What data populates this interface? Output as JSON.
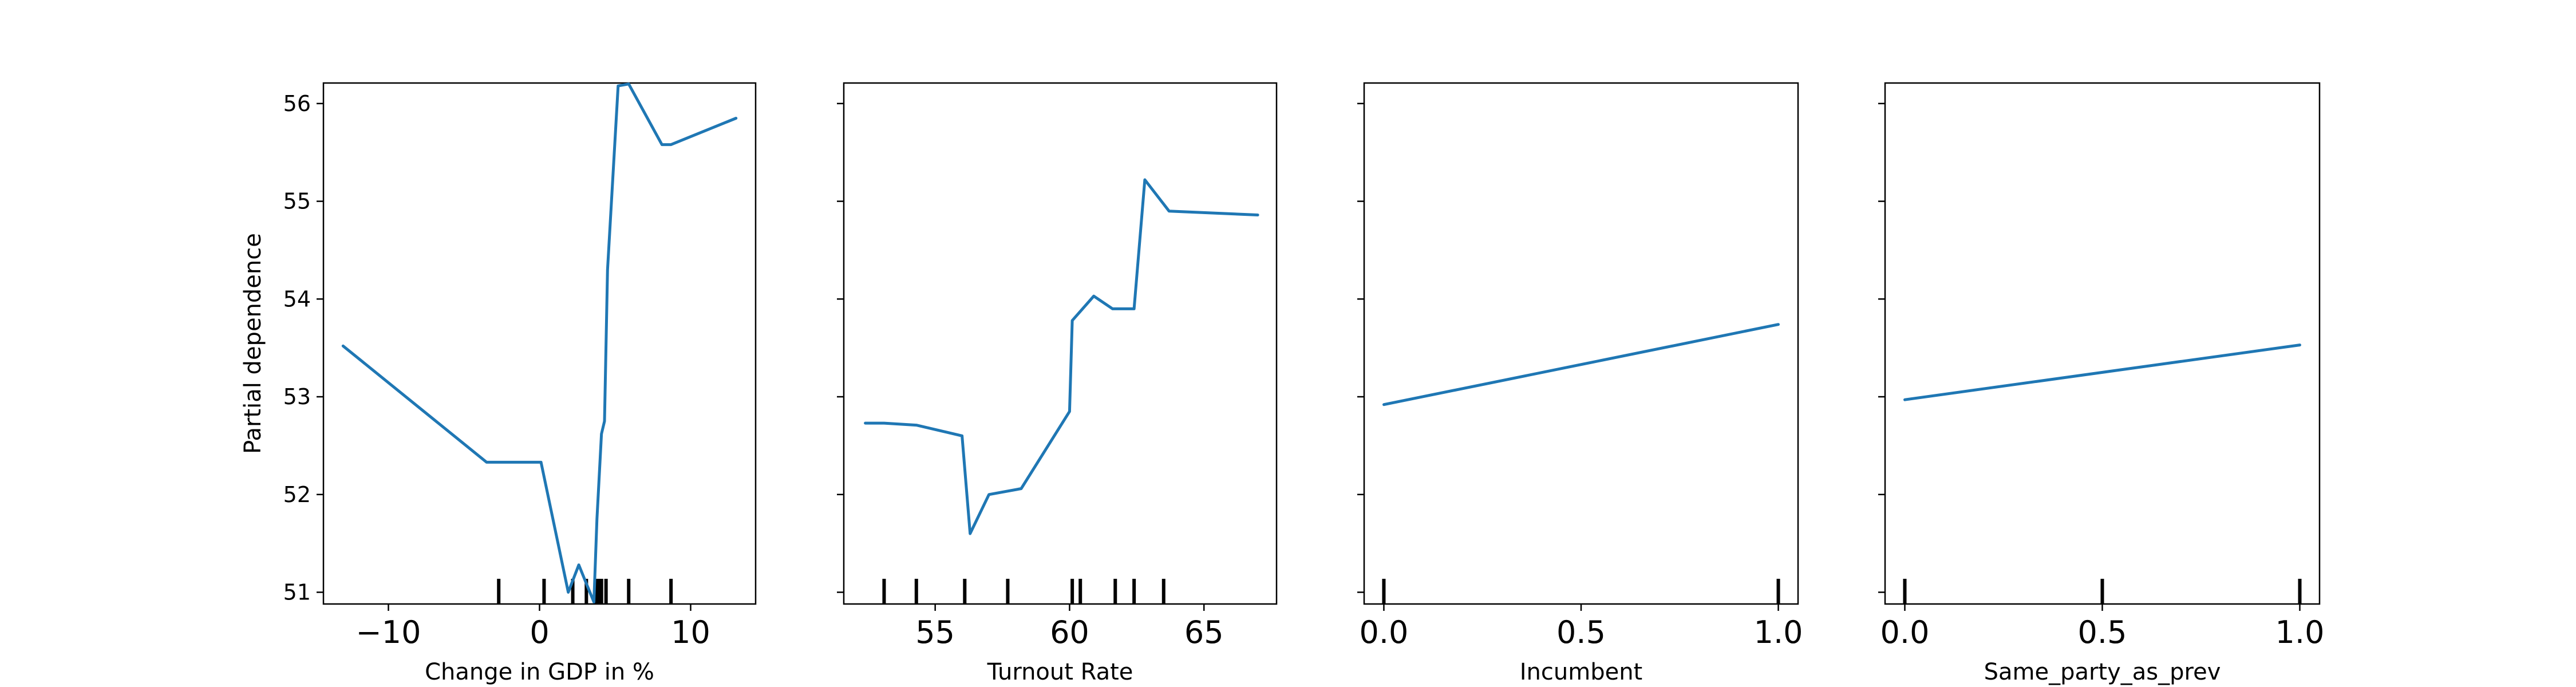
{
  "chart_data": {
    "type": "line",
    "ylabel": "Partial dependence",
    "ylim": [
      50.88,
      56.21
    ],
    "yticks": [
      51,
      52,
      53,
      54,
      55,
      56
    ],
    "grid": false,
    "legend": "none",
    "line_color": "#1f77b4",
    "panels": [
      {
        "xlabel": "Change in GDP in %",
        "xlim": [
          -14.3,
          14.3
        ],
        "xticks": [
          -10,
          0,
          10
        ],
        "x": [
          -13.0,
          -3.5,
          0.1,
          1.9,
          2.6,
          3.2,
          3.6,
          3.8,
          4.1,
          4.3,
          4.5,
          5.2,
          5.9,
          8.1,
          8.7,
          13.0
        ],
        "y": [
          53.52,
          52.33,
          52.33,
          51.0,
          51.28,
          51.05,
          50.9,
          51.75,
          52.62,
          52.75,
          54.3,
          56.18,
          56.2,
          55.58,
          55.58,
          55.85
        ],
        "rug": [
          -2.7,
          0.3,
          2.2,
          3.1,
          3.7,
          3.9,
          4.1,
          4.4,
          5.9,
          8.7
        ]
      },
      {
        "xlabel": "Turnout Rate",
        "xlim": [
          51.6,
          67.7
        ],
        "xticks": [
          55,
          60,
          65
        ],
        "x": [
          52.4,
          53.1,
          54.3,
          56.0,
          56.3,
          57.0,
          58.2,
          60.0,
          60.1,
          60.9,
          61.6,
          62.4,
          62.8,
          63.7,
          67.0
        ],
        "y": [
          52.73,
          52.73,
          52.71,
          52.6,
          51.6,
          52.0,
          52.06,
          52.85,
          53.78,
          54.03,
          53.9,
          53.9,
          55.22,
          54.9,
          54.86
        ],
        "rug": [
          53.1,
          54.3,
          56.1,
          57.7,
          60.1,
          60.4,
          61.7,
          62.4,
          63.5
        ]
      },
      {
        "xlabel": "Incumbent",
        "xlim": [
          -0.05,
          1.05
        ],
        "xticks": [
          0.0,
          0.5,
          1.0
        ],
        "x": [
          0.0,
          1.0
        ],
        "y": [
          52.92,
          53.74
        ],
        "rug": [
          0.0,
          1.0
        ]
      },
      {
        "xlabel": "Same_party_as_prev",
        "xlim": [
          -0.05,
          1.05
        ],
        "xticks": [
          0.0,
          0.5,
          1.0
        ],
        "x": [
          0.0,
          1.0
        ],
        "y": [
          52.97,
          53.53
        ],
        "rug": [
          0.0,
          0.5,
          1.0
        ]
      }
    ]
  }
}
